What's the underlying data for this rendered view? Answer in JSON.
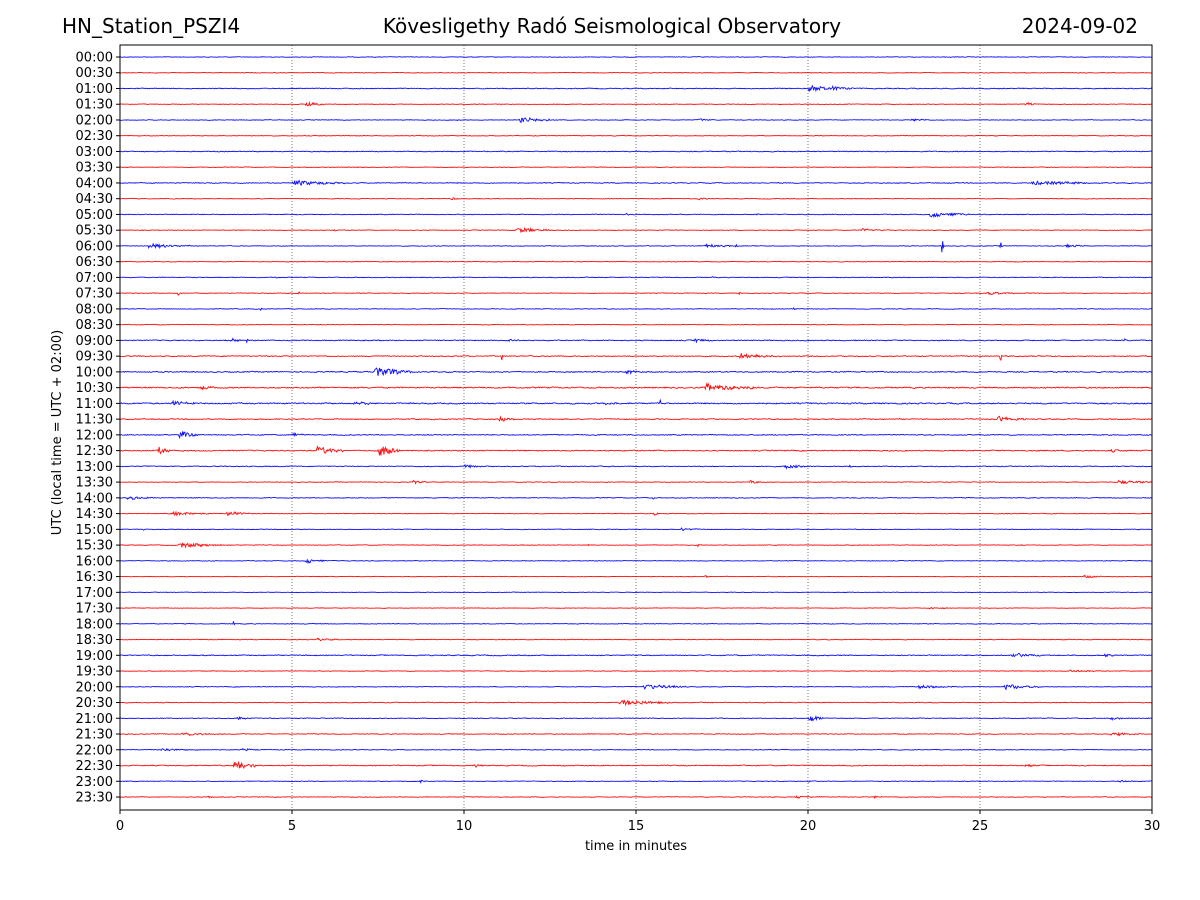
{
  "header": {
    "station": "HN_Station_PSZI4",
    "observatory": "Kövesligethy Radó Seismological Observatory",
    "date": "2024-09-02"
  },
  "chart_data": {
    "type": "line",
    "title": "Kövesligethy Radó Seismological Observatory",
    "xlabel": "time in minutes",
    "ylabel": "UTC (local time = UTC + 02:00)",
    "xlim": [
      0,
      30
    ],
    "xticks": [
      0,
      5,
      10,
      15,
      20,
      25,
      30
    ],
    "grid": "vertical dotted at x ticks",
    "legend": "none",
    "series_colors": [
      "#0000ff",
      "#ff0000"
    ],
    "rows": [
      {
        "label": "00:00",
        "noise": 0.6,
        "events": []
      },
      {
        "label": "00:30",
        "noise": 0.6,
        "events": []
      },
      {
        "label": "01:00",
        "noise": 0.8,
        "events": [
          {
            "t": 20.0,
            "amp": 4,
            "dur": 0.8
          },
          {
            "t": 20.7,
            "amp": 3,
            "dur": 0.6
          }
        ]
      },
      {
        "label": "01:30",
        "noise": 0.6,
        "events": [
          {
            "t": 5.4,
            "amp": 3,
            "dur": 0.5
          },
          {
            "t": 26.3,
            "amp": 3,
            "dur": 0.3
          }
        ]
      },
      {
        "label": "02:00",
        "noise": 0.6,
        "events": [
          {
            "t": 9.8,
            "amp": 3,
            "dur": 0.05
          },
          {
            "t": 11.6,
            "amp": 3,
            "dur": 1.0
          },
          {
            "t": 16.8,
            "amp": 1.5,
            "dur": 0.4
          },
          {
            "t": 23.0,
            "amp": 1.5,
            "dur": 0.6
          }
        ]
      },
      {
        "label": "02:30",
        "noise": 0.6,
        "events": []
      },
      {
        "label": "03:00",
        "noise": 0.8,
        "events": []
      },
      {
        "label": "03:30",
        "noise": 0.6,
        "events": []
      },
      {
        "label": "04:00",
        "noise": 0.8,
        "events": [
          {
            "t": 5.0,
            "amp": 3,
            "dur": 1.5
          },
          {
            "t": 26.5,
            "amp": 2,
            "dur": 2.5
          }
        ]
      },
      {
        "label": "04:30",
        "noise": 0.6,
        "events": [
          {
            "t": 9.6,
            "amp": 1.5,
            "dur": 0.4
          },
          {
            "t": 16.8,
            "amp": 1.5,
            "dur": 0.4
          }
        ]
      },
      {
        "label": "05:00",
        "noise": 0.7,
        "events": [
          {
            "t": 5.1,
            "amp": 4,
            "dur": 0.05
          },
          {
            "t": 14.7,
            "amp": 2,
            "dur": 0.1
          },
          {
            "t": 18.5,
            "amp": 2,
            "dur": 0.1
          },
          {
            "t": 23.5,
            "amp": 3,
            "dur": 1.2
          }
        ]
      },
      {
        "label": "05:30",
        "noise": 0.6,
        "events": [
          {
            "t": 6.2,
            "amp": 2,
            "dur": 0.1
          },
          {
            "t": 11.5,
            "amp": 3,
            "dur": 1.0
          },
          {
            "t": 21.5,
            "amp": 1.5,
            "dur": 1.0
          }
        ]
      },
      {
        "label": "06:00",
        "noise": 0.6,
        "events": [
          {
            "t": 0.8,
            "amp": 2.5,
            "dur": 1.2
          },
          {
            "t": 17.0,
            "amp": 2,
            "dur": 0.8
          },
          {
            "t": 17.9,
            "amp": 4,
            "dur": 0.05
          },
          {
            "t": 23.9,
            "amp": 10,
            "dur": 0.05
          },
          {
            "t": 25.6,
            "amp": 7,
            "dur": 0.05
          },
          {
            "t": 27.5,
            "amp": 2,
            "dur": 0.5
          }
        ]
      },
      {
        "label": "06:30",
        "noise": 0.6,
        "events": []
      },
      {
        "label": "07:00",
        "noise": 0.7,
        "events": [
          {
            "t": 4.5,
            "amp": 1.5,
            "dur": 0.1
          },
          {
            "t": 17.2,
            "amp": 1.5,
            "dur": 0.1
          }
        ]
      },
      {
        "label": "07:30",
        "noise": 0.6,
        "events": [
          {
            "t": 1.7,
            "amp": 4,
            "dur": 0.05
          },
          {
            "t": 5.2,
            "amp": 3,
            "dur": 0.05
          },
          {
            "t": 18.0,
            "amp": 3,
            "dur": 0.05
          },
          {
            "t": 25.2,
            "amp": 2,
            "dur": 0.8
          }
        ]
      },
      {
        "label": "08:00",
        "noise": 0.6,
        "events": [
          {
            "t": 4.1,
            "amp": 4,
            "dur": 0.05
          },
          {
            "t": 19.6,
            "amp": 2,
            "dur": 0.05
          }
        ]
      },
      {
        "label": "08:30",
        "noise": 0.6,
        "events": []
      },
      {
        "label": "09:00",
        "noise": 0.9,
        "events": [
          {
            "t": 3.2,
            "amp": 2,
            "dur": 0.4
          },
          {
            "t": 3.7,
            "amp": 4,
            "dur": 0.05
          },
          {
            "t": 11.3,
            "amp": 2,
            "dur": 0.3
          },
          {
            "t": 16.7,
            "amp": 2,
            "dur": 0.6
          },
          {
            "t": 29.2,
            "amp": 3,
            "dur": 0.05
          }
        ]
      },
      {
        "label": "09:30",
        "noise": 0.9,
        "events": [
          {
            "t": 11.1,
            "amp": 4,
            "dur": 0.05
          },
          {
            "t": 18.0,
            "amp": 3,
            "dur": 1.2
          },
          {
            "t": 25.6,
            "amp": 5,
            "dur": 0.05
          }
        ]
      },
      {
        "label": "10:00",
        "noise": 1.0,
        "events": [
          {
            "t": 7.4,
            "amp": 6,
            "dur": 1.0
          },
          {
            "t": 14.7,
            "amp": 2,
            "dur": 0.5
          }
        ]
      },
      {
        "label": "10:30",
        "noise": 1.2,
        "events": [
          {
            "t": 2.3,
            "amp": 3,
            "dur": 0.5
          },
          {
            "t": 17.0,
            "amp": 4,
            "dur": 1.5
          }
        ]
      },
      {
        "label": "11:00",
        "noise": 1.2,
        "events": [
          {
            "t": 1.5,
            "amp": 3,
            "dur": 0.6
          },
          {
            "t": 6.8,
            "amp": 3,
            "dur": 0.4
          },
          {
            "t": 14.0,
            "amp": 2,
            "dur": 0.4
          },
          {
            "t": 15.7,
            "amp": 6,
            "dur": 0.05
          }
        ]
      },
      {
        "label": "11:30",
        "noise": 0.9,
        "events": [
          {
            "t": 11.0,
            "amp": 3,
            "dur": 0.4
          },
          {
            "t": 25.5,
            "amp": 3,
            "dur": 0.8
          }
        ]
      },
      {
        "label": "12:00",
        "noise": 0.9,
        "events": [
          {
            "t": 1.7,
            "amp": 5,
            "dur": 0.5
          },
          {
            "t": 5.0,
            "amp": 2,
            "dur": 0.3
          }
        ]
      },
      {
        "label": "12:30",
        "noise": 1.0,
        "events": [
          {
            "t": 1.1,
            "amp": 5,
            "dur": 0.3
          },
          {
            "t": 5.7,
            "amp": 5,
            "dur": 0.8
          },
          {
            "t": 7.5,
            "amp": 7,
            "dur": 0.6
          },
          {
            "t": 28.8,
            "amp": 2,
            "dur": 0.4
          }
        ]
      },
      {
        "label": "13:00",
        "noise": 0.8,
        "events": [
          {
            "t": 10.0,
            "amp": 2,
            "dur": 0.5
          },
          {
            "t": 19.3,
            "amp": 2,
            "dur": 0.8
          },
          {
            "t": 21.2,
            "amp": 3,
            "dur": 0.05
          }
        ]
      },
      {
        "label": "13:30",
        "noise": 0.6,
        "events": [
          {
            "t": 8.5,
            "amp": 2,
            "dur": 0.4
          },
          {
            "t": 18.3,
            "amp": 3,
            "dur": 0.3
          },
          {
            "t": 29.0,
            "amp": 2,
            "dur": 1.0
          }
        ]
      },
      {
        "label": "14:00",
        "noise": 0.7,
        "events": [
          {
            "t": 0.2,
            "amp": 2,
            "dur": 0.8
          },
          {
            "t": 15.5,
            "amp": 2,
            "dur": 0.05
          }
        ]
      },
      {
        "label": "14:30",
        "noise": 0.6,
        "events": [
          {
            "t": 1.5,
            "amp": 2,
            "dur": 1.2
          },
          {
            "t": 3.1,
            "amp": 3,
            "dur": 0.6
          },
          {
            "t": 15.5,
            "amp": 2,
            "dur": 0.2
          },
          {
            "t": 25.8,
            "amp": 3,
            "dur": 0.05
          }
        ]
      },
      {
        "label": "15:00",
        "noise": 0.6,
        "events": [
          {
            "t": 0.7,
            "amp": 4,
            "dur": 0.05
          },
          {
            "t": 16.3,
            "amp": 2,
            "dur": 0.5
          }
        ]
      },
      {
        "label": "15:30",
        "noise": 0.6,
        "events": [
          {
            "t": 1.7,
            "amp": 3,
            "dur": 1.2
          },
          {
            "t": 13.6,
            "amp": 2,
            "dur": 0.05
          },
          {
            "t": 16.8,
            "amp": 2,
            "dur": 0.05
          },
          {
            "t": 22.0,
            "amp": 2,
            "dur": 0.05
          }
        ]
      },
      {
        "label": "16:00",
        "noise": 0.6,
        "events": [
          {
            "t": 5.4,
            "amp": 3,
            "dur": 0.5
          }
        ]
      },
      {
        "label": "16:30",
        "noise": 0.5,
        "events": [
          {
            "t": 17.0,
            "amp": 2,
            "dur": 0.1
          },
          {
            "t": 28.0,
            "amp": 1.5,
            "dur": 0.6
          }
        ]
      },
      {
        "label": "17:00",
        "noise": 0.5,
        "events": []
      },
      {
        "label": "17:30",
        "noise": 0.5,
        "events": [
          {
            "t": 23.5,
            "amp": 1.5,
            "dur": 0.6
          }
        ]
      },
      {
        "label": "18:00",
        "noise": 0.6,
        "events": [
          {
            "t": 3.3,
            "amp": 3,
            "dur": 0.05
          }
        ]
      },
      {
        "label": "18:30",
        "noise": 0.6,
        "events": [
          {
            "t": 5.7,
            "amp": 1.5,
            "dur": 0.6
          },
          {
            "t": 20.5,
            "amp": 1.5,
            "dur": 0.05
          }
        ]
      },
      {
        "label": "19:00",
        "noise": 0.9,
        "events": [
          {
            "t": 25.9,
            "amp": 3,
            "dur": 0.8
          },
          {
            "t": 28.6,
            "amp": 2,
            "dur": 0.3
          }
        ]
      },
      {
        "label": "19:30",
        "noise": 0.6,
        "events": [
          {
            "t": 27.6,
            "amp": 1.5,
            "dur": 0.8
          }
        ]
      },
      {
        "label": "20:00",
        "noise": 0.6,
        "events": [
          {
            "t": 15.2,
            "amp": 3,
            "dur": 1.2
          },
          {
            "t": 23.2,
            "amp": 2,
            "dur": 1.0
          },
          {
            "t": 25.7,
            "amp": 3,
            "dur": 1.0
          }
        ]
      },
      {
        "label": "20:30",
        "noise": 0.7,
        "events": [
          {
            "t": 14.5,
            "amp": 3,
            "dur": 1.5
          }
        ]
      },
      {
        "label": "21:00",
        "noise": 0.7,
        "events": [
          {
            "t": 3.4,
            "amp": 2,
            "dur": 0.3
          },
          {
            "t": 20.0,
            "amp": 5,
            "dur": 0.4
          },
          {
            "t": 28.8,
            "amp": 2,
            "dur": 0.3
          }
        ]
      },
      {
        "label": "21:30",
        "noise": 0.7,
        "events": [
          {
            "t": 1.8,
            "amp": 2,
            "dur": 1.0
          },
          {
            "t": 28.8,
            "amp": 2,
            "dur": 0.8
          }
        ]
      },
      {
        "label": "22:00",
        "noise": 0.6,
        "events": [
          {
            "t": 1.2,
            "amp": 1.5,
            "dur": 1.2
          },
          {
            "t": 3.5,
            "amp": 1.5,
            "dur": 0.5
          }
        ]
      },
      {
        "label": "22:30",
        "noise": 0.9,
        "events": [
          {
            "t": 3.3,
            "amp": 6,
            "dur": 0.6
          },
          {
            "t": 10.3,
            "amp": 2,
            "dur": 0.3
          },
          {
            "t": 26.3,
            "amp": 2,
            "dur": 0.5
          }
        ]
      },
      {
        "label": "23:00",
        "noise": 0.6,
        "events": [
          {
            "t": 8.7,
            "amp": 1.5,
            "dur": 0.3
          },
          {
            "t": 20.0,
            "amp": 2,
            "dur": 0.1
          },
          {
            "t": 29.0,
            "amp": 1.5,
            "dur": 0.5
          }
        ]
      },
      {
        "label": "23:30",
        "noise": 0.6,
        "events": [
          {
            "t": 2.5,
            "amp": 1.5,
            "dur": 0.2
          },
          {
            "t": 19.6,
            "amp": 1.5,
            "dur": 0.8
          },
          {
            "t": 21.9,
            "amp": 2,
            "dur": 0.2
          }
        ]
      }
    ]
  }
}
